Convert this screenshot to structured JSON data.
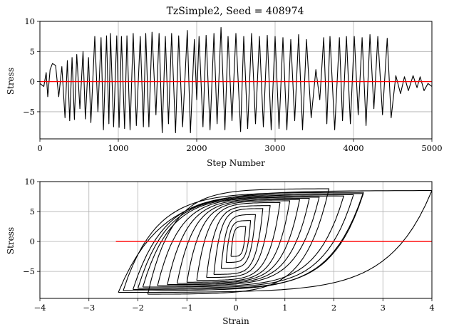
{
  "chart_data": [
    {
      "type": "line",
      "title": "TzSimple2, Seed = 408974",
      "xlabel": "Step Number",
      "ylabel": "Stress",
      "xlim": [
        0,
        5000
      ],
      "ylim": [
        -9.5,
        10
      ],
      "xticks": [
        "0",
        "1000",
        "2000",
        "3000",
        "4000",
        "5000"
      ],
      "yticks": [
        "−5",
        "0",
        "5",
        "10"
      ],
      "xtick_values": [
        0,
        1000,
        2000,
        3000,
        4000,
        5000
      ],
      "ytick_values": [
        -5,
        0,
        5,
        10
      ],
      "grid": true,
      "series": [
        {
          "color": "#000000",
          "x": [
            0,
            50,
            80,
            100,
            130,
            160,
            200,
            240,
            280,
            320,
            350,
            380,
            410,
            440,
            470,
            510,
            550,
            580,
            620,
            650,
            700,
            740,
            780,
            810,
            850,
            880,
            900,
            940,
            980,
            1010,
            1040,
            1080,
            1110,
            1150,
            1190,
            1230,
            1280,
            1320,
            1350,
            1390,
            1430,
            1480,
            1520,
            1560,
            1600,
            1640,
            1680,
            1730,
            1770,
            1820,
            1880,
            1920,
            1970,
            2000,
            2030,
            2080,
            2120,
            2170,
            2220,
            2260,
            2310,
            2360,
            2400,
            2450,
            2500,
            2560,
            2600,
            2650,
            2700,
            2750,
            2800,
            2850,
            2900,
            2950,
            3000,
            3050,
            3100,
            3150,
            3200,
            3250,
            3300,
            3350,
            3400,
            3460,
            3520,
            3570,
            3620,
            3660,
            3700,
            3760,
            3820,
            3860,
            3910,
            3960,
            4010,
            4060,
            4110,
            4160,
            4210,
            4260,
            4310,
            4370,
            4430,
            4480,
            4540,
            4600,
            4650,
            4700,
            4760,
            4810,
            4850,
            4900,
            4950,
            5000
          ],
          "y": [
            -0.3,
            -0.8,
            1.5,
            -2.5,
            2.0,
            3.0,
            2.7,
            -2.5,
            2.5,
            -6.0,
            3.5,
            -6.5,
            4.0,
            -6.3,
            4.5,
            -4.5,
            5.0,
            -6.2,
            4.0,
            -6.8,
            7.5,
            -5.0,
            7.3,
            -8.0,
            7.6,
            -7.0,
            8.0,
            -7.5,
            7.6,
            -7.6,
            7.5,
            -7.8,
            7.6,
            -8.0,
            8.0,
            -7.3,
            7.5,
            -7.5,
            8.0,
            -7.5,
            8.2,
            -5.5,
            8.0,
            -8.5,
            7.5,
            -7.0,
            8.0,
            -8.5,
            7.6,
            -7.5,
            8.5,
            -8.5,
            7.0,
            -3.0,
            7.5,
            -7.5,
            7.7,
            -8.0,
            8.0,
            -7.0,
            9.0,
            -8.0,
            7.5,
            -6.5,
            8.0,
            -8.3,
            7.5,
            -7.8,
            8.0,
            -7.0,
            7.5,
            -7.5,
            7.7,
            -8.0,
            7.5,
            -7.8,
            7.3,
            -8.0,
            7.0,
            -6.5,
            7.8,
            -8.0,
            7.0,
            -6.0,
            2.0,
            -3.0,
            7.3,
            -7.0,
            7.5,
            -8.0,
            7.3,
            -6.5,
            7.5,
            -7.0,
            7.5,
            -5.5,
            7.3,
            -7.3,
            7.8,
            -4.5,
            7.5,
            -5.5,
            7.2,
            -6.0,
            1.0,
            -2.0,
            0.8,
            -1.5,
            1.0,
            -1.0,
            0.8,
            -1.5,
            -0.3,
            -0.8
          ]
        },
        {
          "color": "#ff0000",
          "x": [
            0,
            5000
          ],
          "y": [
            0,
            0
          ]
        }
      ]
    },
    {
      "type": "line",
      "title": "",
      "xlabel": "Strain",
      "ylabel": "Stress",
      "xlim": [
        -4,
        4
      ],
      "ylim": [
        -9.5,
        10
      ],
      "xticks": [
        "−4",
        "−3",
        "−2",
        "−1",
        "0",
        "1",
        "2",
        "3",
        "4"
      ],
      "yticks": [
        "−5",
        "0",
        "5",
        "10"
      ],
      "xtick_values": [
        -4,
        -3,
        -2,
        -1,
        0,
        1,
        2,
        3,
        4
      ],
      "ytick_values": [
        -5,
        0,
        5,
        10
      ],
      "grid": true,
      "series": [
        {
          "color": "#000000",
          "hysteresis_loops": [
            {
              "xmin": -2.4,
              "xmax": 4.0,
              "y": 8.5
            },
            {
              "xmin": -2.3,
              "xmax": 2.6,
              "y": 8.2
            },
            {
              "xmin": -2.1,
              "xmax": 2.6,
              "y": 8.0
            },
            {
              "xmin": -2.0,
              "xmax": 2.4,
              "y": 7.8
            },
            {
              "xmin": -1.9,
              "xmax": 2.2,
              "y": 7.6
            },
            {
              "xmin": -1.8,
              "xmax": 1.9,
              "y": 8.8
            },
            {
              "xmin": -1.6,
              "xmax": 1.7,
              "y": 7.4
            },
            {
              "xmin": -1.4,
              "xmax": 1.5,
              "y": 7.2
            },
            {
              "xmin": -1.2,
              "xmax": 1.3,
              "y": 7.0
            },
            {
              "xmin": -1.0,
              "xmax": 1.1,
              "y": 6.8
            },
            {
              "xmin": -0.8,
              "xmax": 0.9,
              "y": 6.5
            },
            {
              "xmin": -0.6,
              "xmax": 0.7,
              "y": 6.0
            },
            {
              "xmin": -0.45,
              "xmax": 0.55,
              "y": 5.5
            },
            {
              "xmin": -0.3,
              "xmax": 0.4,
              "y": 4.5
            },
            {
              "xmin": -0.2,
              "xmax": 0.3,
              "y": 3.5
            },
            {
              "xmin": -0.1,
              "xmax": 0.2,
              "y": 2.5
            }
          ]
        },
        {
          "color": "#ff0000",
          "x": [
            -2.45,
            4.0
          ],
          "y": [
            0,
            0
          ]
        }
      ]
    }
  ]
}
